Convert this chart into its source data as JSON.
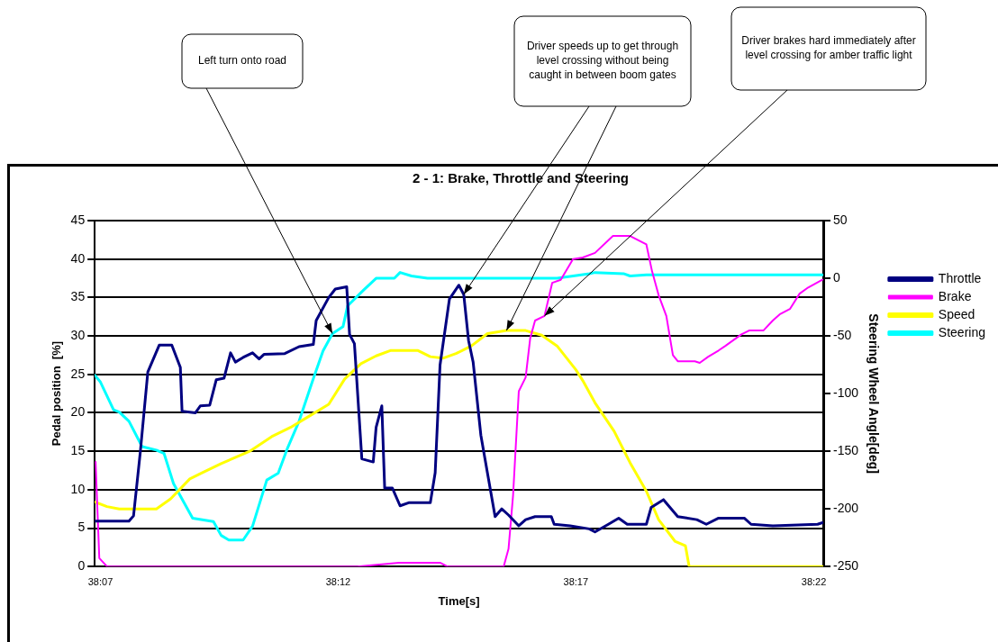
{
  "chart_data": {
    "type": "line",
    "title": "2 - 1: Brake, Throttle and Steering",
    "xlabel": "Time[s]",
    "ylabel": "Pedal position  [%]",
    "y2label": "Steering Wheel Angle[deg]",
    "xlim": [
      38.1147,
      38.37
    ],
    "xticks": [
      {
        "value": 38.1167,
        "label": "38:07"
      },
      {
        "value": 38.2,
        "label": "38:12"
      },
      {
        "value": 38.2833,
        "label": "38:17"
      },
      {
        "value": 38.3667,
        "label": "38:22"
      }
    ],
    "ylim": [
      0,
      45
    ],
    "yticks": [
      0,
      5,
      10,
      15,
      20,
      25,
      30,
      35,
      40,
      45
    ],
    "y2lim": [
      -250,
      50
    ],
    "y2ticks": [
      -250,
      -200,
      -150,
      -100,
      -50,
      0,
      50
    ],
    "grid": "y",
    "legend": "right",
    "marker": "none",
    "line_style": "solid",
    "annotations": [
      "Left turn onto road",
      "Driver speeds up to get through level crossing without being caught in between boom gates",
      "Driver brakes hard immediately after level crossing for amber traffic light"
    ],
    "series": [
      {
        "name": "Throttle",
        "color": "#000080",
        "x": [
          38.1147,
          38.1267,
          38.1283,
          38.1307,
          38.1333,
          38.1373,
          38.1417,
          38.1447,
          38.1453,
          38.15,
          38.1517,
          38.155,
          38.1573,
          38.16,
          38.1623,
          38.164,
          38.1667,
          38.17,
          38.1723,
          38.174,
          38.1813,
          38.1863,
          38.1913,
          38.1923,
          38.1967,
          38.199,
          38.203,
          38.204,
          38.2057,
          38.2083,
          38.2123,
          38.2133,
          38.2153,
          38.2163,
          38.219,
          38.2217,
          38.2247,
          38.2323,
          38.234,
          38.2357,
          38.239,
          38.2423,
          38.244,
          38.2457,
          38.2473,
          38.25,
          38.2523,
          38.255,
          38.2573,
          38.2597,
          38.2633,
          38.2657,
          38.269,
          38.2747,
          38.2757,
          38.2813,
          38.288,
          38.29,
          38.2947,
          38.2983,
          38.3013,
          38.308,
          38.3097,
          38.314,
          38.319,
          38.3257,
          38.329,
          38.3333,
          38.3423,
          38.3447,
          38.3523,
          38.368,
          38.3697
        ],
        "values": [
          5.9,
          5.9,
          6.6,
          15.0,
          25.3,
          28.8,
          28.8,
          25.9,
          20.2,
          20.0,
          20.9,
          21.0,
          24.3,
          24.5,
          27.8,
          26.6,
          27.2,
          27.8,
          27.0,
          27.6,
          27.7,
          28.6,
          28.9,
          32.0,
          35.0,
          36.1,
          36.4,
          30.2,
          29.0,
          14.0,
          13.6,
          18.1,
          20.9,
          10.2,
          10.2,
          7.9,
          8.3,
          8.3,
          12.2,
          26.2,
          34.8,
          36.6,
          35.4,
          29.4,
          26.6,
          17.1,
          12.2,
          6.5,
          7.5,
          6.7,
          5.3,
          6.1,
          6.5,
          6.5,
          5.5,
          5.3,
          4.9,
          4.5,
          5.5,
          6.3,
          5.5,
          5.5,
          7.7,
          8.7,
          6.5,
          6.1,
          5.5,
          6.3,
          6.3,
          5.5,
          5.3,
          5.5,
          5.7
        ]
      },
      {
        "name": "Brake",
        "color": "#ff00ff",
        "x": [
          38.115,
          38.1163,
          38.119,
          38.2067,
          38.2213,
          38.2357,
          38.2383,
          38.258,
          38.2597,
          38.2613,
          38.2633,
          38.2657,
          38.2673,
          38.269,
          38.2723,
          38.275,
          38.278,
          38.2823,
          38.2857,
          38.29,
          38.2963,
          38.3023,
          38.308,
          38.31,
          38.3123,
          38.315,
          38.3173,
          38.319,
          38.325,
          38.3267,
          38.3297,
          38.3333,
          38.3357,
          38.3413,
          38.344,
          38.349,
          38.3523,
          38.3547,
          38.3583,
          38.3617,
          38.3647,
          38.3697
        ],
        "values": [
          13.6,
          1.1,
          0,
          0,
          0.5,
          0.5,
          0,
          0,
          2.3,
          9.3,
          22.8,
          24.6,
          29.7,
          32.0,
          32.6,
          36.9,
          37.3,
          40.0,
          40.2,
          40.8,
          43.0,
          43.0,
          41.9,
          38.4,
          35.3,
          32.6,
          27.5,
          26.7,
          26.7,
          26.5,
          27.3,
          28.1,
          28.7,
          30.2,
          30.7,
          30.7,
          32.0,
          32.8,
          33.5,
          35.5,
          36.3,
          37.3
        ]
      },
      {
        "name": "Speed",
        "color": "#ffff00",
        "x": [
          38.1147,
          38.119,
          38.1233,
          38.1363,
          38.1413,
          38.148,
          38.1523,
          38.159,
          38.169,
          38.1767,
          38.1833,
          38.19,
          38.1967,
          38.2023,
          38.208,
          38.2133,
          38.2183,
          38.228,
          38.2323,
          38.2367,
          38.2413,
          38.2467,
          38.2523,
          38.259,
          38.2657,
          38.2713,
          38.2767,
          38.2833,
          38.2857,
          38.29,
          38.2967,
          38.3023,
          38.308,
          38.3123,
          38.318,
          38.3217,
          38.323,
          38.37
        ],
        "values": [
          8.4,
          7.8,
          7.5,
          7.5,
          8.8,
          11.4,
          12.2,
          13.4,
          15.0,
          16.9,
          18.1,
          19.6,
          21.1,
          24.4,
          26.4,
          27.4,
          28.1,
          28.1,
          27.3,
          27.1,
          27.7,
          28.7,
          30.3,
          30.7,
          30.7,
          30.1,
          28.7,
          25.6,
          24.2,
          21.3,
          17.6,
          13.5,
          9.8,
          6.1,
          3.3,
          2.7,
          0,
          0
        ]
      },
      {
        "name": "Steering",
        "color": "#00ffff",
        "axis": "y2",
        "x": [
          38.1147,
          38.1167,
          38.1213,
          38.1233,
          38.1267,
          38.1313,
          38.1363,
          38.139,
          38.1423,
          38.149,
          38.1563,
          38.159,
          38.1617,
          38.1667,
          38.17,
          38.175,
          38.179,
          38.1823,
          38.1863,
          38.1913,
          38.1947,
          38.198,
          38.2017,
          38.2033,
          38.209,
          38.2133,
          38.2197,
          38.2217,
          38.2257,
          38.2313,
          38.2367,
          38.259,
          38.2767,
          38.288,
          38.29,
          38.3,
          38.3023,
          38.308,
          38.3697
        ],
        "values": [
          -84,
          -90,
          -114,
          -116,
          -124,
          -146,
          -149,
          -152,
          -178,
          -208,
          -211,
          -223,
          -227,
          -227,
          -215,
          -175,
          -169,
          -147,
          -124,
          -87,
          -63,
          -48,
          -42,
          -24,
          -10,
          0,
          0,
          5,
          2,
          0,
          0,
          0,
          0,
          4,
          5,
          4,
          2,
          3,
          3
        ]
      }
    ]
  }
}
